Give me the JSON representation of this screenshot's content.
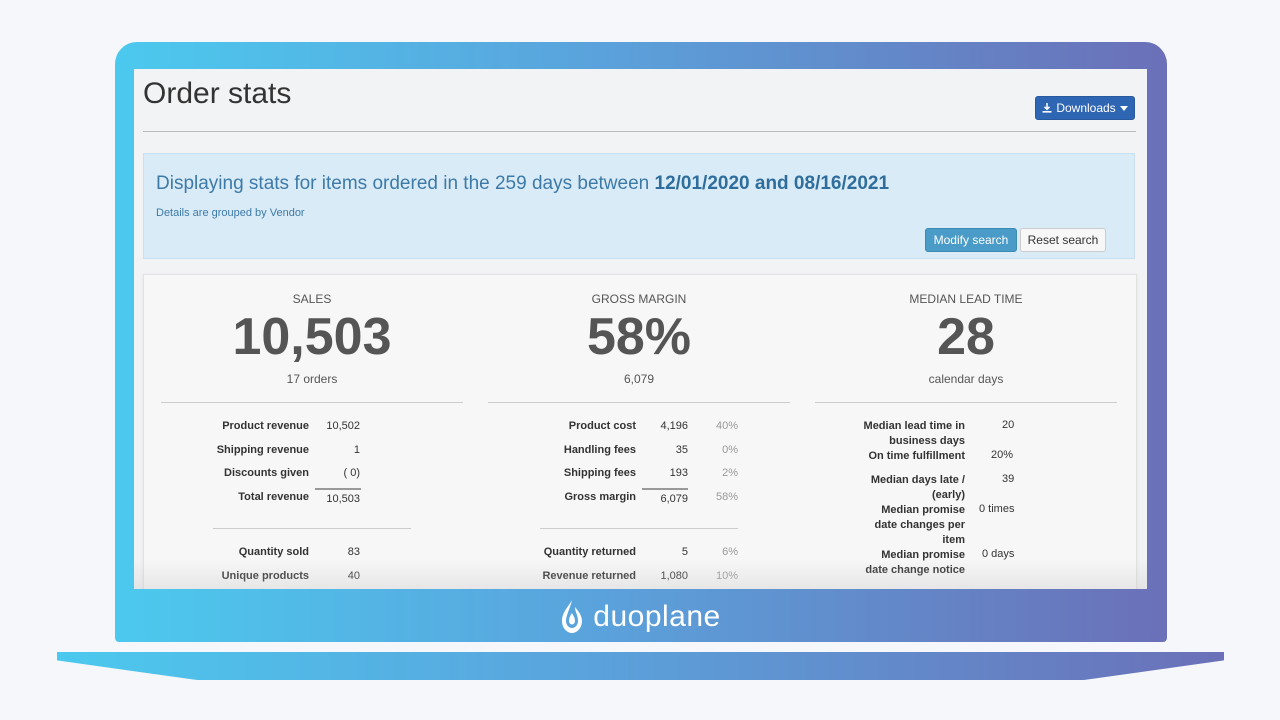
{
  "page": {
    "title": "Order stats",
    "downloads_label": "Downloads",
    "brand_name": "duoplane"
  },
  "banner": {
    "heading_prefix": "Displaying stats for items ordered in the 259 days between ",
    "heading_dates": "12/01/2020 and 08/16/2021",
    "subtext": "Details are grouped by Vendor",
    "modify_label": "Modify search",
    "reset_label": "Reset search"
  },
  "sales": {
    "label": "SALES",
    "value": "10,503",
    "sub": "17 orders",
    "rows": [
      {
        "label": "Product revenue",
        "value": "10,502"
      },
      {
        "label": "Shipping revenue",
        "value": "1"
      },
      {
        "label": "Discounts given",
        "value": "( 0)"
      },
      {
        "label": "Total revenue",
        "value": "10,503"
      }
    ],
    "rows2": [
      {
        "label": "Quantity sold",
        "value": "83"
      },
      {
        "label": "Unique products",
        "value": "40"
      }
    ]
  },
  "margin": {
    "label": "GROSS MARGIN",
    "value": "58%",
    "sub": "6,079",
    "rows": [
      {
        "label": "Product cost",
        "value": "4,196",
        "pct": "40%"
      },
      {
        "label": "Handling fees",
        "value": "35",
        "pct": "0%"
      },
      {
        "label": "Shipping fees",
        "value": "193",
        "pct": "2%"
      },
      {
        "label": "Gross margin",
        "value": "6,079",
        "pct": "58%"
      }
    ],
    "rows2": [
      {
        "label": "Quantity returned",
        "value": "5",
        "pct": "6%"
      },
      {
        "label": "Revenue returned",
        "value": "1,080",
        "pct": "10%"
      }
    ]
  },
  "lead": {
    "label": "MEDIAN LEAD TIME",
    "value": "28",
    "sub": "calendar days",
    "rows": [
      {
        "label": "Median lead time in business days",
        "value": "20"
      },
      {
        "label": "On time fulfillment",
        "value": "20%"
      },
      {
        "label": "Median days late / (early)",
        "value": "39"
      },
      {
        "label": "Median promise date changes per item",
        "value": "0 times"
      },
      {
        "label": "Median promise date change notice",
        "value": "0 days"
      }
    ]
  },
  "icons": {
    "download": "download-icon",
    "caret": "caret-down-icon",
    "brand": "duoplane-logo-icon"
  },
  "colors": {
    "primary_button": "#2f66b3",
    "info_button": "#4a9bc7",
    "banner_bg": "#d9ebf7",
    "frame_gradient_start": "#4cc9ee",
    "frame_gradient_end": "#6b70b8"
  }
}
